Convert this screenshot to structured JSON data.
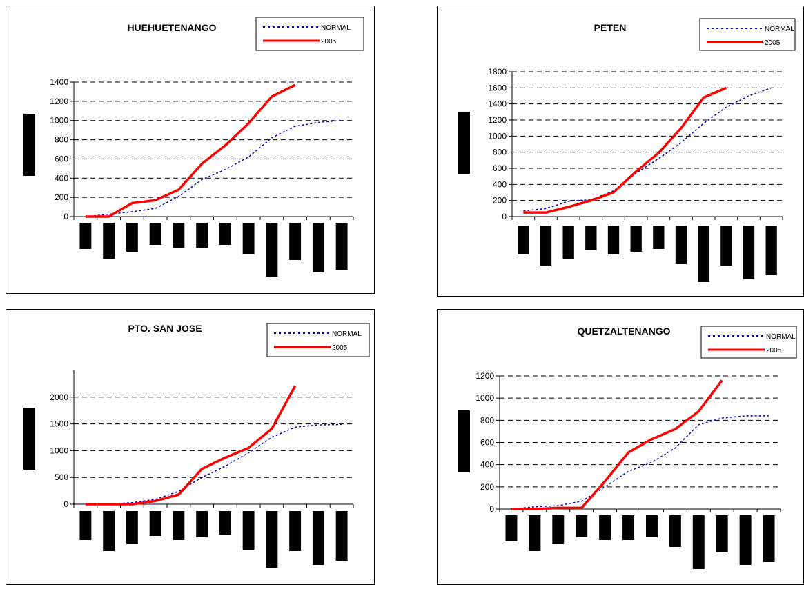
{
  "legend": {
    "normal": "NORMAL",
    "year": "2005"
  },
  "colors": {
    "normal": "#0000cc",
    "year": "#ff0000",
    "grid": "#000000",
    "bars": "#000000"
  },
  "chart_data": [
    {
      "type": "line",
      "title": "HUEHUETENANGO",
      "ylim": [
        0,
        1400
      ],
      "yticks": [
        0,
        200,
        400,
        600,
        800,
        1000,
        1200,
        1400
      ],
      "series": [
        {
          "name": "NORMAL",
          "values": [
            0,
            25,
            50,
            85,
            210,
            385,
            490,
            620,
            820,
            940,
            980,
            1000
          ]
        },
        {
          "name": "2005",
          "values": [
            0,
            0,
            140,
            170,
            280,
            550,
            740,
            970,
            1250,
            1370
          ]
        }
      ],
      "bars_label_icons": "black-bar",
      "bars_values": [
        38,
        52,
        42,
        32,
        36,
        36,
        32,
        46,
        78,
        54,
        72,
        68
      ]
    },
    {
      "type": "line",
      "title": "PETEN",
      "ylim": [
        0,
        1800
      ],
      "yticks": [
        0,
        200,
        400,
        600,
        800,
        1000,
        1200,
        1400,
        1600,
        1800
      ],
      "series": [
        {
          "name": "NORMAL",
          "values": [
            70,
            100,
            190,
            210,
            320,
            540,
            720,
            920,
            1160,
            1360,
            1500,
            1600
          ]
        },
        {
          "name": "2005",
          "values": [
            50,
            50,
            120,
            200,
            300,
            560,
            790,
            1100,
            1480,
            1600
          ]
        }
      ],
      "bars_values": [
        42,
        58,
        48,
        36,
        42,
        38,
        34,
        56,
        82,
        58,
        78,
        72
      ]
    },
    {
      "type": "line",
      "title": "PTO. SAN JOSE",
      "ylim": [
        0,
        2500
      ],
      "yticks": [
        0,
        500,
        1000,
        1500,
        2000
      ],
      "series": [
        {
          "name": "NORMAL",
          "values": [
            0,
            0,
            30,
            90,
            240,
            500,
            710,
            960,
            1250,
            1440,
            1480,
            1490
          ]
        },
        {
          "name": "2005",
          "values": [
            0,
            0,
            0,
            60,
            180,
            660,
            870,
            1050,
            1410,
            2210
          ]
        }
      ],
      "bars_values": [
        42,
        58,
        48,
        36,
        42,
        38,
        34,
        56,
        82,
        58,
        78,
        72
      ]
    },
    {
      "type": "line",
      "title": "QUETZALTENANGO",
      "ylim": [
        0,
        1200
      ],
      "yticks": [
        0,
        200,
        400,
        600,
        800,
        1000,
        1200
      ],
      "series": [
        {
          "name": "NORMAL",
          "values": [
            0,
            20,
            30,
            70,
            200,
            340,
            420,
            550,
            760,
            820,
            840,
            840
          ]
        },
        {
          "name": "2005",
          "values": [
            0,
            0,
            10,
            10,
            250,
            510,
            630,
            720,
            880,
            1160
          ]
        }
      ],
      "bars_values": [
        38,
        52,
        42,
        32,
        36,
        36,
        32,
        46,
        78,
        54,
        72,
        68
      ]
    }
  ]
}
